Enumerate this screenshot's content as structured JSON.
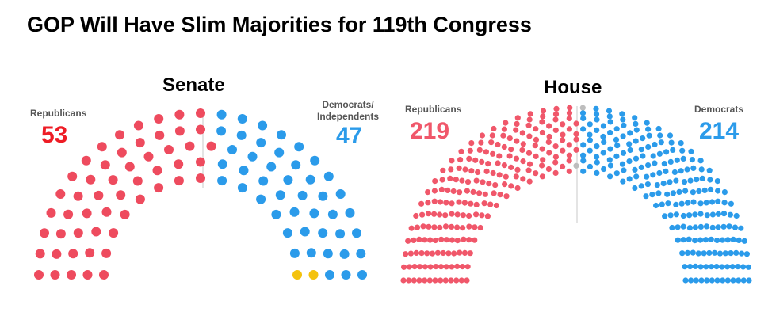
{
  "colors": {
    "republican_count": "#EE1C25",
    "republican_seat": "#EE4B5E",
    "republican_seat_house": "#F0576A",
    "democrat": "#2B9BEA",
    "independent": "#F4C20D",
    "vacant": "#BDBDBD",
    "divider": "#C8C8C8"
  },
  "chart_data": [
    {
      "type": "parliament",
      "title": "Senate",
      "total_seats": 100,
      "series": [
        {
          "name": "Republicans",
          "values": [
            53
          ],
          "color": "#EE4B5E"
        },
        {
          "name": "Democrats",
          "values": [
            45
          ],
          "color": "#2B9BEA"
        },
        {
          "name": "Independents",
          "values": [
            2
          ],
          "color": "#F4C20D"
        }
      ],
      "labels": {
        "left_name": "Republicans",
        "left_count": "53",
        "right_name": "Democrats/\nIndependents",
        "right_count": "47"
      }
    },
    {
      "type": "parliament",
      "title": "House",
      "total_seats": 435,
      "series": [
        {
          "name": "Republicans",
          "values": [
            219
          ],
          "color": "#F0576A"
        },
        {
          "name": "Vacant",
          "values": [
            2
          ],
          "color": "#BDBDBD"
        },
        {
          "name": "Democrats",
          "values": [
            214
          ],
          "color": "#2B9BEA"
        }
      ],
      "labels": {
        "left_name": "Republicans",
        "left_count": "219",
        "right_name": "Democrats",
        "right_count": "214"
      }
    }
  ],
  "page": {
    "title": "GOP Will Have Slim Majorities for 119th Congress"
  }
}
